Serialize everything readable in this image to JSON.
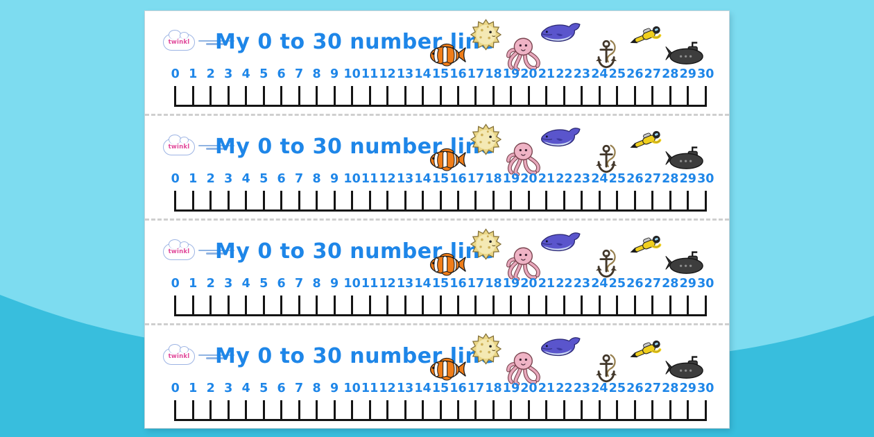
{
  "background": {
    "sky_color": "#7ddcf0",
    "wave_color": "#38bedd"
  },
  "page": {
    "background": "#ffffff",
    "dash_color": "#cfcfcf",
    "tick_color": "#141414",
    "strip_count": 4
  },
  "strip": {
    "logo": {
      "brand": "twinkl"
    },
    "title": "My 0 to 30 number line",
    "title_color": "#1e86e8",
    "numbers": [
      "0",
      "1",
      "2",
      "3",
      "4",
      "5",
      "6",
      "7",
      "8",
      "9",
      "10",
      "11",
      "12",
      "13",
      "14",
      "15",
      "16",
      "17",
      "18",
      "19",
      "20",
      "21",
      "22",
      "23",
      "24",
      "25",
      "26",
      "27",
      "28",
      "29",
      "30"
    ],
    "icons": [
      "clownfish-icon",
      "pufferfish-icon",
      "octopus-icon",
      "whale-icon",
      "anchor-icon",
      "scuba-diver-icon",
      "submarine-icon"
    ]
  }
}
